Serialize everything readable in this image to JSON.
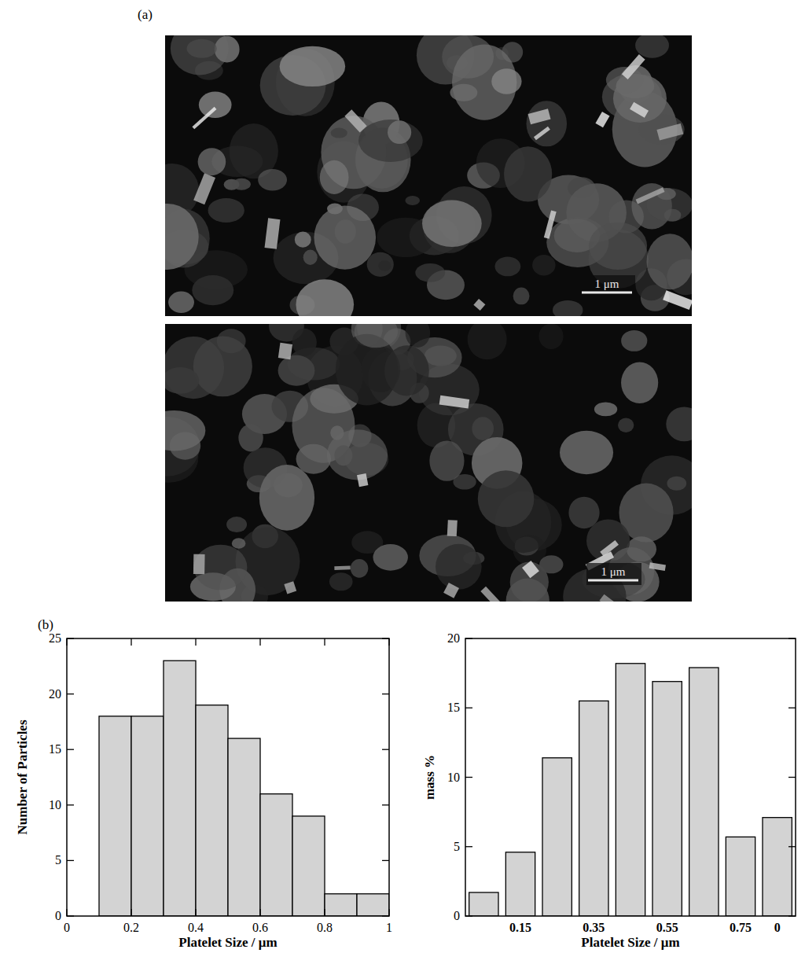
{
  "panel_a": {
    "label": "(a)",
    "images": [
      {
        "scale_bar": "1 μm"
      },
      {
        "scale_bar": "1 μm"
      }
    ]
  },
  "panel_b": {
    "label": "(b)"
  },
  "chart_data": [
    {
      "type": "histogram",
      "bins": [
        0.1,
        0.2,
        0.3,
        0.4,
        0.5,
        0.6,
        0.7,
        0.8,
        0.9,
        1.0
      ],
      "values": [
        18,
        18,
        23,
        19,
        16,
        11,
        9,
        2,
        2
      ],
      "color": "#d3d3d3",
      "x_label": "Platelet Size / μm",
      "y_label": "Number of Particles",
      "xlim": [
        0,
        1
      ],
      "xticks": [
        0,
        0.2,
        0.4,
        0.6,
        0.8,
        1
      ],
      "ylim": [
        0,
        25
      ],
      "yticks": [
        0,
        5,
        10,
        15,
        20,
        25
      ]
    },
    {
      "type": "bar",
      "categories": [
        null,
        "0.15",
        null,
        "0.35",
        null,
        "0.55",
        null,
        "0.75",
        "0"
      ],
      "values": [
        1.7,
        4.6,
        11.4,
        15.5,
        18.2,
        16.9,
        17.9,
        5.7,
        7.1
      ],
      "color": "#d3d3d3",
      "x_label": "Platelet Size / μm",
      "y_label": "mass %",
      "ylim": [
        0,
        20
      ],
      "yticks": [
        0,
        5,
        10,
        15,
        20
      ]
    }
  ]
}
